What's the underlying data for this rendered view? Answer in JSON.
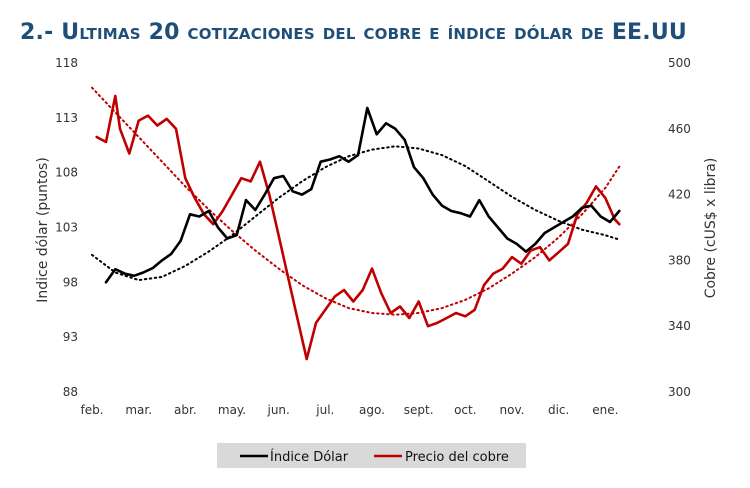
{
  "title": "2.- Ultimas 20 cotizaciones del cobre e índice dólar de EE.UU",
  "chart_data": {
    "type": "line",
    "categories": [
      "feb.",
      "mar.",
      "abr.",
      "may.",
      "jun.",
      "jul.",
      "ago.",
      "sept.",
      "oct.",
      "nov.",
      "dic.",
      "ene."
    ],
    "ylabel_left": "Indice dólar (puntos)",
    "ylabel_right": "Cobre (cUS$ x libra)",
    "ylim_left": [
      88,
      118
    ],
    "yticks_left": [
      88,
      93,
      98,
      103,
      108,
      113,
      118
    ],
    "ylim_right": [
      300,
      500
    ],
    "yticks_right": [
      300,
      340,
      380,
      420,
      460,
      500
    ],
    "legend_position": "bottom-center",
    "colors": {
      "dollar": "#000000",
      "copper": "#c00000"
    },
    "series": [
      {
        "name": "Índice Dólar",
        "axis": "left",
        "color": "#000000",
        "x": [
          0.3,
          0.5,
          0.7,
          0.9,
          1.1,
          1.3,
          1.5,
          1.7,
          1.9,
          2.1,
          2.3,
          2.5,
          2.7,
          2.9,
          3.1,
          3.3,
          3.5,
          3.7,
          3.9,
          4.1,
          4.3,
          4.5,
          4.7,
          4.9,
          5.1,
          5.3,
          5.5,
          5.7,
          5.9,
          6.1,
          6.3,
          6.5,
          6.7,
          6.9,
          7.1,
          7.3,
          7.5,
          7.7,
          7.9,
          8.1,
          8.3,
          8.5,
          8.7,
          8.9,
          9.1,
          9.3,
          9.5,
          9.7,
          9.9,
          10.1,
          10.3,
          10.5,
          10.7,
          10.9,
          11.1,
          11.3
        ],
        "values": [
          98.0,
          99.2,
          98.8,
          98.6,
          98.9,
          99.3,
          100.0,
          100.6,
          101.8,
          104.2,
          104.0,
          104.5,
          103.0,
          102.0,
          102.3,
          105.5,
          104.6,
          106.0,
          107.5,
          107.7,
          106.3,
          106.0,
          106.5,
          109.0,
          109.2,
          109.5,
          109.0,
          109.6,
          113.9,
          111.5,
          112.5,
          112.0,
          111.0,
          108.5,
          107.5,
          106.0,
          105.0,
          104.5,
          104.3,
          104.0,
          105.5,
          104.0,
          103.0,
          102.0,
          101.5,
          100.8,
          101.5,
          102.5,
          103.0,
          103.5,
          104.0,
          104.8,
          105.0,
          104.0,
          103.5,
          104.5
        ]
      },
      {
        "name": "Precio del cobre",
        "axis": "right",
        "color": "#c00000",
        "x": [
          0.1,
          0.3,
          0.5,
          0.6,
          0.8,
          1.0,
          1.2,
          1.4,
          1.6,
          1.8,
          2.0,
          2.2,
          2.4,
          2.6,
          2.8,
          3.0,
          3.2,
          3.4,
          3.6,
          3.8,
          4.0,
          4.2,
          4.4,
          4.6,
          4.8,
          5.0,
          5.2,
          5.4,
          5.6,
          5.8,
          6.0,
          6.2,
          6.4,
          6.6,
          6.8,
          7.0,
          7.2,
          7.4,
          7.6,
          7.8,
          8.0,
          8.2,
          8.4,
          8.6,
          8.8,
          9.0,
          9.2,
          9.4,
          9.6,
          9.8,
          10.0,
          10.2,
          10.4,
          10.6,
          10.8,
          11.0,
          11.2,
          11.3
        ],
        "values": [
          455,
          452,
          480,
          460,
          445,
          465,
          468,
          462,
          466,
          460,
          430,
          418,
          408,
          402,
          410,
          420,
          430,
          428,
          440,
          420,
          395,
          370,
          345,
          320,
          342,
          350,
          358,
          362,
          355,
          362,
          375,
          360,
          348,
          352,
          345,
          355,
          340,
          342,
          345,
          348,
          346,
          350,
          365,
          372,
          375,
          382,
          378,
          386,
          388,
          380,
          385,
          390,
          408,
          415,
          425,
          418,
          405,
          402
        ]
      },
      {
        "name": "",
        "axis": "left",
        "color": "#000000",
        "style": "dotted",
        "x": [
          0.0,
          0.5,
          1.0,
          1.5,
          2.0,
          2.5,
          3.0,
          3.5,
          4.0,
          4.5,
          5.0,
          5.5,
          6.0,
          6.5,
          7.0,
          7.5,
          8.0,
          8.5,
          9.0,
          9.5,
          10.0,
          10.5,
          11.0,
          11.3
        ],
        "values": [
          100.5,
          98.9,
          98.2,
          98.5,
          99.5,
          100.8,
          102.3,
          104.0,
          105.7,
          107.2,
          108.5,
          109.5,
          110.1,
          110.4,
          110.2,
          109.6,
          108.6,
          107.2,
          105.8,
          104.6,
          103.6,
          102.8,
          102.3,
          101.9
        ]
      },
      {
        "name": "",
        "axis": "right",
        "color": "#c00000",
        "style": "dotted",
        "x": [
          0.0,
          0.5,
          1.0,
          1.5,
          2.0,
          2.5,
          3.0,
          3.5,
          4.0,
          4.5,
          5.0,
          5.5,
          6.0,
          6.5,
          7.0,
          7.5,
          8.0,
          8.5,
          9.0,
          9.5,
          10.0,
          10.5,
          11.0,
          11.3
        ],
        "values": [
          485,
          470,
          455,
          440,
          425,
          411,
          398,
          386,
          375,
          365,
          357,
          351,
          348,
          347,
          348,
          351,
          356,
          363,
          372,
          382,
          394,
          408,
          424,
          437
        ]
      }
    ]
  }
}
